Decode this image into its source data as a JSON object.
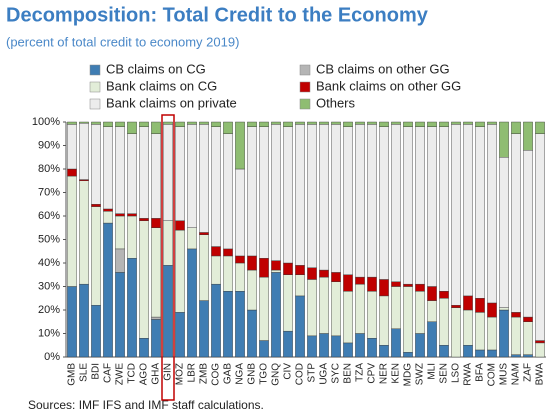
{
  "chart_data": {
    "type": "stacked_bar",
    "title": "Decomposition: Total Credit to the Economy",
    "subtitle": "(percent of total credit to economy 2019)",
    "source": "Sources: IMF IFS and IMF staff calculations.",
    "categories": [
      "GMB",
      "SLE",
      "BDI",
      "CAF",
      "ZWE",
      "TCD",
      "AGO",
      "GHA",
      "GIN",
      "MOZ",
      "LBR",
      "ZMB",
      "COG",
      "GAB",
      "NGA",
      "GNB",
      "TGO",
      "GNQ",
      "CIV",
      "COD",
      "STP",
      "UGA",
      "SYC",
      "BEN",
      "TZA",
      "CPV",
      "NER",
      "KEN",
      "MDG",
      "SWZ",
      "MLI",
      "SEN",
      "LSO",
      "RWA",
      "BFA",
      "COM",
      "MUS",
      "NAM",
      "ZAF",
      "BWA"
    ],
    "series": [
      {
        "name": "CB claims on CG",
        "color": "#3f7db3",
        "values": [
          30,
          31,
          22,
          57,
          36,
          42,
          8,
          16,
          39,
          19,
          46,
          24,
          31,
          28,
          28,
          20,
          7,
          36,
          11,
          26,
          9,
          10,
          9,
          6,
          10,
          8,
          5,
          12,
          2,
          10,
          15,
          5,
          0,
          5,
          3,
          3,
          20,
          1,
          1,
          0
        ]
      },
      {
        "name": "CB claims on other GG",
        "color": "#b5b5b5",
        "values": [
          0,
          0,
          0,
          0,
          10,
          0,
          0,
          1,
          0,
          0,
          0,
          0,
          0,
          0,
          0,
          0,
          0,
          0,
          0,
          0,
          0,
          0,
          0,
          0,
          0,
          0,
          0,
          0,
          0,
          0,
          0,
          0,
          0,
          0,
          0,
          0,
          0,
          0,
          0,
          0
        ]
      },
      {
        "name": "Bank claims on CG",
        "color": "#e2edd8",
        "values": [
          47,
          44,
          42,
          5,
          14,
          18,
          50,
          38,
          19,
          35,
          9,
          28,
          12,
          15,
          12,
          17,
          27,
          1,
          24,
          9,
          24,
          24,
          23,
          22,
          21,
          20,
          21,
          18,
          28,
          18,
          9,
          20,
          21,
          15,
          16,
          14,
          1,
          16,
          14,
          6
        ]
      },
      {
        "name": "Bank claims on other GG",
        "color": "#c00000",
        "values": [
          3,
          0.5,
          1,
          1,
          1,
          1,
          1,
          4,
          0,
          4,
          0,
          1,
          4,
          3,
          3,
          6,
          8,
          4,
          5,
          4,
          5,
          3,
          4,
          7,
          3,
          6,
          7,
          2,
          1,
          3,
          6,
          3,
          1,
          6,
          6,
          6,
          0,
          2,
          2,
          1
        ]
      },
      {
        "name": "Bank claims on private",
        "color": "#ececec",
        "values": [
          19,
          24,
          34,
          35,
          37,
          34,
          39,
          36,
          41,
          40,
          44,
          46,
          51,
          49,
          37,
          55,
          56,
          58,
          58,
          60,
          61,
          62,
          63,
          63,
          65,
          65,
          65,
          67,
          67,
          67,
          68,
          70,
          77,
          73,
          73,
          76,
          64,
          76,
          71,
          88
        ]
      },
      {
        "name": "Others",
        "color": "#8fbd72",
        "values": [
          1,
          0.5,
          1,
          2,
          2,
          5,
          2,
          5,
          1,
          2,
          1,
          1,
          2,
          5,
          20,
          2,
          2,
          1,
          2,
          1,
          1,
          1,
          1,
          2,
          1,
          1,
          2,
          1,
          2,
          2,
          2,
          2,
          1,
          1,
          2,
          1,
          15,
          5,
          12,
          5
        ]
      }
    ],
    "ylim": [
      0,
      100
    ],
    "yticks": [
      {
        "value": 0,
        "label": "0%"
      },
      {
        "value": 10,
        "label": "10%"
      },
      {
        "value": 20,
        "label": "20%"
      },
      {
        "value": 30,
        "label": "30%"
      },
      {
        "value": 40,
        "label": "40%"
      },
      {
        "value": 50,
        "label": "50%"
      },
      {
        "value": 60,
        "label": "60%"
      },
      {
        "value": 70,
        "label": "70%"
      },
      {
        "value": 80,
        "label": "80%"
      },
      {
        "value": 90,
        "label": "90%"
      },
      {
        "value": 100,
        "label": "100%"
      }
    ]
  }
}
